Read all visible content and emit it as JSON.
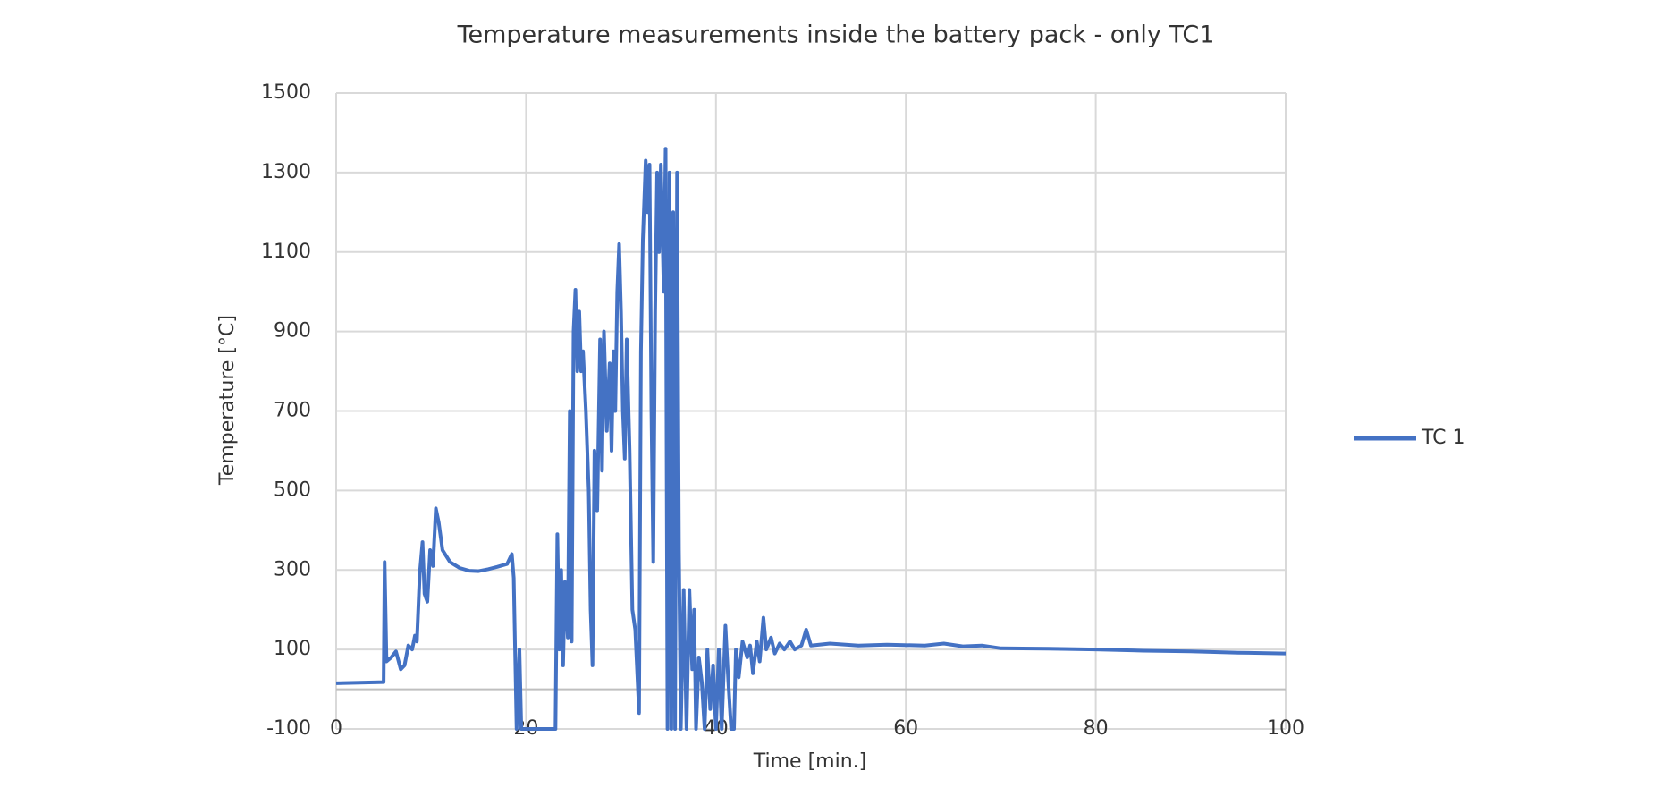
{
  "chart_data": {
    "type": "line",
    "title": "Temperature measurements inside the battery pack - only TC1",
    "x_label": "Time [min.]",
    "y_label": "Temperature [°C]",
    "xlim": [
      0,
      100
    ],
    "xticks": [
      0,
      20,
      40,
      60,
      80,
      100
    ],
    "ylim": [
      -100,
      1500
    ],
    "yticks": [
      -100,
      100,
      300,
      500,
      700,
      900,
      1100,
      1300,
      1500
    ],
    "grid": true,
    "legend": "right",
    "x": [
      0,
      5,
      5.1,
      5.3,
      5.8,
      6.3,
      6.8,
      7.2,
      7.6,
      8,
      8.3,
      8.5,
      8.8,
      9.1,
      9.3,
      9.6,
      9.9,
      10.2,
      10.5,
      10.8,
      11.2,
      12,
      13,
      14,
      15,
      16,
      17,
      18,
      18.5,
      18.7,
      19,
      19.3,
      19.5,
      23.1,
      23.3,
      23.5,
      23.7,
      23.9,
      24.1,
      24.4,
      24.6,
      24.8,
      25,
      25.2,
      25.4,
      25.6,
      25.8,
      26,
      26.3,
      26.6,
      26.8,
      27,
      27.2,
      27.5,
      27.8,
      28,
      28.2,
      28.5,
      28.8,
      29,
      29.2,
      29.4,
      29.6,
      29.8,
      30,
      30.2,
      30.4,
      30.6,
      30.9,
      31.2,
      31.5,
      31.9,
      32.1,
      32.3,
      32.6,
      32.8,
      33,
      33.2,
      33.4,
      33.6,
      33.8,
      34,
      34.2,
      34.5,
      34.7,
      34.9,
      35.1,
      35.3,
      35.5,
      35.7,
      35.9,
      36.1,
      36.3,
      36.6,
      36.9,
      37.2,
      37.5,
      37.7,
      37.9,
      38.2,
      38.5,
      38.8,
      39.1,
      39.4,
      39.7,
      40,
      40.3,
      40.6,
      41,
      41.3,
      41.6,
      41.9,
      42.1,
      42.4,
      42.8,
      43.3,
      43.6,
      43.9,
      44.3,
      44.6,
      45,
      45.3,
      45.8,
      46.2,
      46.7,
      47.2,
      47.8,
      48.3,
      49,
      49.5,
      50,
      52,
      55,
      58,
      62,
      64,
      66,
      68,
      70,
      75,
      80,
      85,
      90,
      95,
      100
    ],
    "series": [
      {
        "name": "TC 1",
        "color": "#4472c4",
        "values": [
          15,
          18,
          320,
          70,
          80,
          95,
          50,
          60,
          110,
          100,
          135,
          120,
          290,
          370,
          240,
          220,
          350,
          310,
          455,
          420,
          350,
          320,
          305,
          298,
          297,
          302,
          308,
          315,
          340,
          280,
          -100,
          100,
          -100,
          -100,
          390,
          100,
          300,
          60,
          270,
          130,
          700,
          120,
          900,
          1005,
          800,
          950,
          800,
          850,
          700,
          500,
          200,
          60,
          600,
          450,
          880,
          550,
          900,
          650,
          820,
          600,
          850,
          700,
          1000,
          1120,
          950,
          700,
          580,
          880,
          600,
          200,
          150,
          -60,
          850,
          1130,
          1330,
          1200,
          1320,
          700,
          320,
          950,
          1300,
          1100,
          1320,
          1000,
          1360,
          -100,
          1300,
          -100,
          1200,
          -100,
          1300,
          350,
          -100,
          250,
          -100,
          250,
          50,
          200,
          -100,
          80,
          20,
          -100,
          100,
          -50,
          60,
          -100,
          100,
          -100,
          160,
          20,
          -100,
          -100,
          100,
          30,
          120,
          80,
          110,
          40,
          120,
          70,
          180,
          100,
          130,
          90,
          115,
          100,
          120,
          100,
          110,
          150,
          110,
          115,
          110,
          112,
          110,
          115,
          108,
          110,
          103,
          102,
          100,
          97,
          95,
          92,
          90
        ]
      }
    ]
  }
}
